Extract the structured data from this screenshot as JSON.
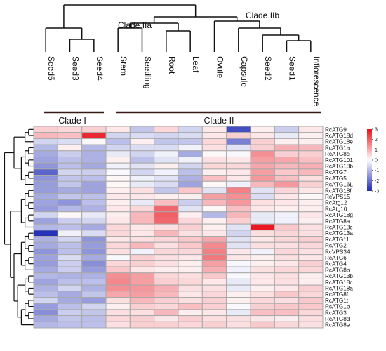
{
  "chart_data": {
    "type": "heatmap",
    "columns": [
      "Seed5",
      "Seed3",
      "Seed4",
      "Stem",
      "Seedling",
      "Root",
      "Leaf",
      "Ovule",
      "Capsule",
      "Seed2",
      "Seed1",
      "Inflorescence"
    ],
    "rows": [
      "RcATG9",
      "RcATG18d",
      "RcATG18e",
      "RcATG1a",
      "RcATG8c",
      "RcATG101",
      "RcATG18b",
      "RcATG7",
      "RcATG5",
      "RcATG16L",
      "RcATG18f",
      "RcVPS15",
      "RcAtg12",
      "RcAtg10",
      "RcATG18g",
      "RcATG8a",
      "RcATG13c",
      "RcATG13a",
      "RcATG11",
      "RcATG2",
      "RcVPS34",
      "RcATG6",
      "RcATG4",
      "RcATG8b",
      "RcATG13b",
      "RcATG18c",
      "RcATG18a",
      "RcATG8f",
      "RcATG1t",
      "RcATG1b",
      "RcATG3",
      "RcATG8d",
      "RcATG8e"
    ],
    "values": [
      [
        0.6,
        0.5,
        0.6,
        0.3,
        -0.8,
        0.5,
        -0.6,
        0.3,
        -2.5,
        0.2,
        -0.7,
        0.3
      ],
      [
        0.9,
        0.8,
        2.7,
        -0.6,
        -0.5,
        -0.6,
        -0.5,
        0.3,
        0.6,
        0.3,
        -0.3,
        0.2
      ],
      [
        -0.6,
        -0.5,
        0.1,
        -0.9,
        0.2,
        -0.8,
        -0.8,
        0.5,
        -1.8,
        0.6,
        0.2,
        0.2
      ],
      [
        -1.0,
        0.2,
        -1.0,
        -0.6,
        -0.5,
        -0.5,
        -0.2,
        0.4,
        -0.4,
        0.6,
        1.0,
        0.9
      ],
      [
        -1.2,
        -0.7,
        -1.1,
        -0.3,
        -0.6,
        -0.2,
        -1.2,
        0.1,
        -0.1,
        1.4,
        0.6,
        0.6
      ],
      [
        -1.3,
        -0.9,
        -1.1,
        0.2,
        -0.9,
        -0.4,
        -0.2,
        0.4,
        0.3,
        1.2,
        1.1,
        0.8
      ],
      [
        -1.5,
        -0.9,
        -1.2,
        -0.2,
        -0.4,
        0.2,
        -0.6,
        0.5,
        0.5,
        1.1,
        0.9,
        1.0
      ],
      [
        -2.2,
        -0.6,
        -0.7,
        -0.1,
        -0.6,
        -0.2,
        -0.9,
        0.2,
        0.3,
        1.2,
        0.7,
        0.9
      ],
      [
        -1.5,
        -0.8,
        -0.9,
        0.1,
        -0.2,
        -0.4,
        -1.1,
        0.8,
        0.3,
        1.3,
        0.8,
        0.4
      ],
      [
        -1.4,
        -0.8,
        -1.3,
        0.1,
        -0.3,
        -0.5,
        -1.3,
        0.1,
        -0.2,
        0.9,
        1.3,
        0.6
      ],
      [
        -1.4,
        -1.2,
        -1.3,
        0.2,
        0.4,
        -0.8,
        0.7,
        -0.4,
        1.6,
        -0.4,
        0.5,
        0.3
      ],
      [
        -1.2,
        -0.8,
        -0.9,
        0.3,
        0.3,
        0.2,
        0.2,
        1.2,
        1.4,
        -0.5,
        0.3,
        0.1
      ],
      [
        -1.3,
        -1.5,
        -0.9,
        0.2,
        -0.3,
        0.8,
        -0.7,
        0.9,
        1.3,
        0.4,
        0.3,
        0.2
      ],
      [
        -1.4,
        -1.0,
        -1.1,
        0.3,
        0.5,
        1.9,
        -0.4,
        0.1,
        0.8,
        0.3,
        0.2,
        0.2
      ],
      [
        -0.6,
        0.1,
        -0.3,
        0.2,
        0.9,
        2.0,
        0.2,
        -1.0,
        0.9,
        -0.3,
        -0.2,
        0.3
      ],
      [
        -1.3,
        -0.7,
        -0.6,
        0.3,
        0.9,
        1.9,
        0.5,
        0.2,
        0.6,
        -0.3,
        -0.2,
        0.2
      ],
      [
        -1.0,
        -0.9,
        -1.2,
        0.5,
        0.3,
        0.4,
        0.6,
        0.2,
        -0.4,
        2.9,
        0.7,
        0.4
      ],
      [
        -2.9,
        -0.2,
        -0.5,
        0.5,
        0.3,
        0.9,
        0.4,
        0.3,
        -0.6,
        0.4,
        0.5,
        0.4
      ],
      [
        -1.1,
        -0.6,
        -1.5,
        0.3,
        0.4,
        0.5,
        0.7,
        1.1,
        -0.4,
        0.3,
        0.5,
        0.6
      ],
      [
        -1.2,
        -0.9,
        -1.4,
        0.5,
        0.9,
        0.4,
        0.7,
        1.5,
        -0.4,
        0.4,
        0.4,
        0.5
      ],
      [
        -1.5,
        -0.9,
        -1.5,
        0.4,
        -0.2,
        0.5,
        0.5,
        1.6,
        0.3,
        -0.2,
        0.5,
        0.4
      ],
      [
        -1.3,
        -0.5,
        -1.2,
        -0.1,
        0.6,
        0.4,
        0.3,
        1.7,
        0.3,
        0.2,
        0.4,
        0.3
      ],
      [
        -1.4,
        -0.7,
        -1.6,
        0.5,
        0.6,
        0.4,
        0.2,
        1.2,
        -0.1,
        0.2,
        0.3,
        0.6
      ],
      [
        -1.2,
        -0.7,
        -1.4,
        0.7,
        0.3,
        0.2,
        0.2,
        1.0,
        -0.2,
        0.4,
        0.5,
        0.5
      ],
      [
        -1.0,
        -1.1,
        -1.1,
        1.4,
        1.2,
        0.5,
        0.4,
        0.7,
        -0.1,
        0.3,
        0.4,
        0.2
      ],
      [
        -1.3,
        -0.9,
        -0.9,
        1.5,
        1.2,
        0.6,
        0.5,
        0.3,
        -0.3,
        0.3,
        0.4,
        0.2
      ],
      [
        -1.1,
        -0.6,
        -1.1,
        1.4,
        1.3,
        1.0,
        0.4,
        0.4,
        -0.3,
        0.2,
        0.3,
        0.6
      ],
      [
        -0.9,
        -1.2,
        -0.8,
        1.1,
        1.2,
        0.9,
        0.3,
        0.5,
        0.2,
        0.4,
        0.7,
        0.5
      ],
      [
        -0.6,
        -1.2,
        -1.4,
        0.4,
        0.9,
        0.6,
        0.4,
        0.6,
        0.2,
        0.5,
        0.4,
        0.7
      ],
      [
        -1.4,
        -0.9,
        -0.6,
        0.2,
        0.6,
        0.5,
        0.8,
        0.6,
        -0.1,
        0.6,
        0.7,
        0.7
      ],
      [
        -1.6,
        -0.7,
        -0.8,
        0.4,
        0.4,
        0.9,
        0.2,
        0.3,
        -0.3,
        0.8,
        0.8,
        0.5
      ],
      [
        -1.2,
        -0.8,
        -0.9,
        0.5,
        0.6,
        0.3,
        0.6,
        0.4,
        0.4,
        0.3,
        0.2,
        0.4
      ],
      [
        -1.0,
        -0.9,
        -0.9,
        0.4,
        0.6,
        0.6,
        0.5,
        0.6,
        0.4,
        0.7,
        0.5,
        0.4
      ]
    ],
    "color_scale": {
      "min": -3,
      "max": 3,
      "low_color": "#1f2bb5",
      "mid_color": "#ffffff",
      "high_color": "#e8101a",
      "ticks": [
        "3",
        "2",
        "1",
        "0",
        "-1",
        "-2",
        "-3"
      ]
    },
    "clade_labels": {
      "top": [
        "Clade IIa",
        "Clade IIb"
      ],
      "bottom": [
        "Clade I",
        "Clade II"
      ]
    },
    "grid": true,
    "legend_position": "right"
  }
}
